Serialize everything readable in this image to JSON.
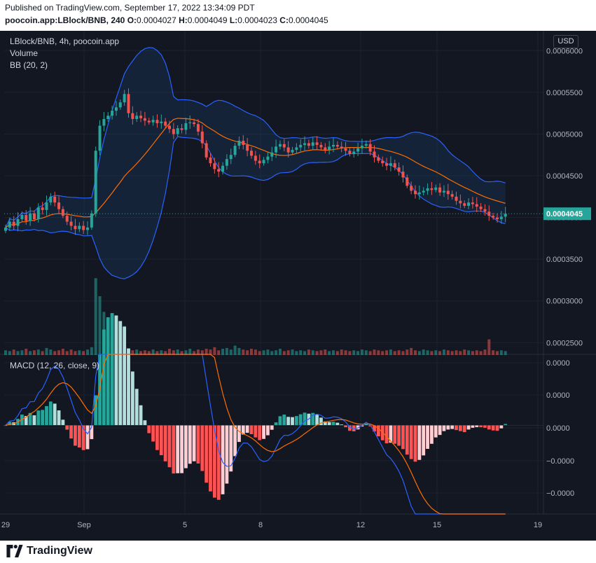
{
  "header": {
    "published": "Published on TradingView.com, September 17, 2022 13:34:09 PDT",
    "symbol": "poocoin.app:LBlock/BNB, 240",
    "o_label": "O:",
    "o_value": "0.0004027",
    "h_label": "H:",
    "h_value": "0.0004049",
    "l_label": "L:",
    "l_value": "0.0004023",
    "c_label": "C:",
    "c_value": "0.0004045"
  },
  "legend": {
    "title": "LBlock/BNB, 4h, poocoin.app",
    "volume": "Volume",
    "bb": "BB (20, 2)",
    "macd": "MACD (12, 26, close, 9)"
  },
  "currency_button": "USD",
  "price_tag": "0.0004045",
  "footer": {
    "brand": "TradingView"
  },
  "colors": {
    "up": "#26a69a",
    "down": "#ef5350",
    "bb_band": "#2962ff",
    "bb_basis": "#ff6d00",
    "macd_line": "#2962ff",
    "signal_line": "#ff6d00",
    "bg": "#131722"
  },
  "chart_data": [
    {
      "type": "candlestick",
      "title": "LBlock/BNB, 4h, poocoin.app",
      "x_ticks": [
        "29",
        "Sep",
        "5",
        "8",
        "12",
        "15",
        "19"
      ],
      "y_ticks": [
        "0.0006000",
        "0.0005500",
        "0.0005000",
        "0.0004500",
        "0.0004000",
        "0.0003500",
        "0.0003000",
        "0.0002500"
      ],
      "ylim": [
        0.000236,
        0.000612
      ],
      "last_price": 0.0004045,
      "close": [
        0.000388,
        0.000395,
        0.00039,
        0.000398,
        0.000403,
        0.000396,
        0.000405,
        0.000398,
        0.000412,
        0.000409,
        0.000418,
        0.000425,
        0.000418,
        0.00041,
        0.000402,
        0.000395,
        0.00039,
        0.000386,
        0.00039,
        0.000385,
        0.000388,
        0.000405,
        0.00048,
        0.00051,
        0.000518,
        0.000522,
        0.000528,
        0.000532,
        0.000538,
        0.000548,
        0.000525,
        0.000518,
        0.000522,
        0.000519,
        0.000516,
        0.000514,
        0.000517,
        0.000513,
        0.000515,
        0.00051,
        0.000506,
        0.0005,
        0.000507,
        0.000505,
        0.000513,
        0.000514,
        0.000512,
        0.000503,
        0.000489,
        0.000472,
        0.000465,
        0.000458,
        0.000455,
        0.000462,
        0.00047,
        0.000475,
        0.000486,
        0.000492,
        0.000487,
        0.00048,
        0.000474,
        0.000468,
        0.000465,
        0.000469,
        0.000473,
        0.000478,
        0.000485,
        0.000488,
        0.000484,
        0.000478,
        0.000481,
        0.000484,
        0.000487,
        0.000489,
        0.000486,
        0.00049,
        0.000487,
        0.000484,
        0.000481,
        0.000485,
        0.000487,
        0.000485,
        0.000483,
        0.00048,
        0.000476,
        0.000479,
        0.000483,
        0.000486,
        0.000488,
        0.000479,
        0.000472,
        0.000468,
        0.000465,
        0.000462,
        0.000465,
        0.00046,
        0.000455,
        0.000448,
        0.000438,
        0.000432,
        0.000428,
        0.00043,
        0.000432,
        0.000435,
        0.000433,
        0.000436,
        0.00043,
        0.000432,
        0.000428,
        0.000425,
        0.00042,
        0.000417,
        0.000414,
        0.000418,
        0.000416,
        0.000413,
        0.00041,
        0.000407,
        0.000402,
        0.0004,
        0.000398,
        0.000401,
        0.0004045
      ],
      "volume_scale": [
        0.06,
        0.05,
        0.07,
        0.05,
        0.06,
        0.08,
        0.05,
        0.06,
        0.07,
        0.05,
        0.09,
        0.07,
        0.05,
        0.06,
        0.08,
        0.05,
        0.07,
        0.05,
        0.06,
        0.05,
        0.07,
        0.1,
        0.98,
        0.75,
        0.55,
        0.22,
        0.14,
        0.1,
        0.2,
        0.37,
        0.08,
        0.06,
        0.07,
        0.05,
        0.06,
        0.05,
        0.07,
        0.05,
        0.06,
        0.05,
        0.08,
        0.06,
        0.07,
        0.05,
        0.06,
        0.08,
        0.05,
        0.07,
        0.06,
        0.08,
        0.07,
        0.1,
        0.06,
        0.08,
        0.09,
        0.07,
        0.12,
        0.09,
        0.07,
        0.06,
        0.08,
        0.07,
        0.05,
        0.06,
        0.07,
        0.05,
        0.06,
        0.08,
        0.05,
        0.06,
        0.07,
        0.05,
        0.06,
        0.05,
        0.07,
        0.06,
        0.05,
        0.06,
        0.07,
        0.05,
        0.06,
        0.05,
        0.07,
        0.06,
        0.05,
        0.06,
        0.05,
        0.07,
        0.06,
        0.05,
        0.07,
        0.06,
        0.05,
        0.06,
        0.07,
        0.05,
        0.06,
        0.05,
        0.07,
        0.09,
        0.06,
        0.05,
        0.07,
        0.06,
        0.05,
        0.06,
        0.05,
        0.07,
        0.06,
        0.05,
        0.06,
        0.05,
        0.07,
        0.06,
        0.05,
        0.06,
        0.05,
        0.07,
        0.2,
        0.06,
        0.05,
        0.06,
        0.05
      ]
    },
    {
      "type": "histogram",
      "title": "MACD (12, 26, close, 9)",
      "y_ticks": [
        "0.0000",
        "0.0000",
        "0.0000",
        "−0.0000",
        "−0.0000"
      ],
      "ylim": [
        -1.15e-05,
        9.2e-06
      ],
      "series": [
        {
          "name": "MACD",
          "values": []
        },
        {
          "name": "Signal",
          "values": []
        },
        {
          "name": "Histogram",
          "values": []
        }
      ]
    }
  ]
}
